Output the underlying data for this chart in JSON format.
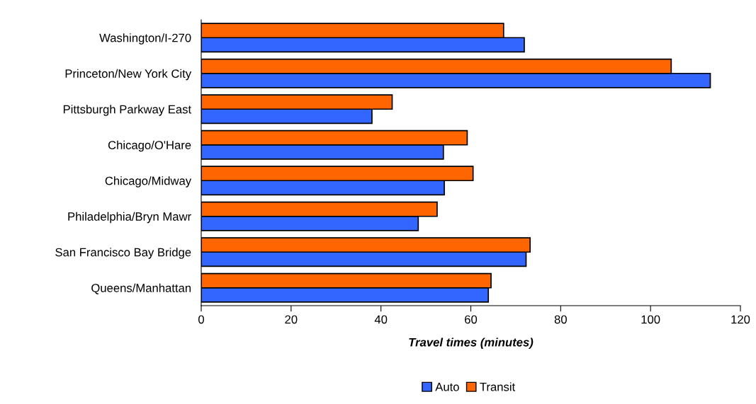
{
  "chart_data": {
    "type": "bar",
    "orientation": "horizontal",
    "xlabel": "Travel times (minutes)",
    "categories": [
      "Washington/I-270",
      "Princeton/New York City",
      "Pittsburgh Parkway East",
      "Chicago/O'Hare",
      "Chicago/Midway",
      "Philadelphia/Bryn Mawr",
      "San Francisco Bay Bridge",
      "Queens/Manhattan"
    ],
    "series": [
      {
        "name": "Auto",
        "color": "#3366ff",
        "values": [
          71.9,
          113.3,
          38.0,
          53.9,
          54.1,
          48.3,
          72.3,
          63.9
        ]
      },
      {
        "name": "Transit",
        "color": "#ff6600",
        "values": [
          67.3,
          104.6,
          42.5,
          59.2,
          60.5,
          52.5,
          73.2,
          64.5
        ]
      }
    ],
    "xlim": [
      0,
      120
    ],
    "xticks": [
      0,
      20,
      40,
      60,
      80,
      100,
      120
    ],
    "grid": false,
    "legend": "bottom"
  }
}
